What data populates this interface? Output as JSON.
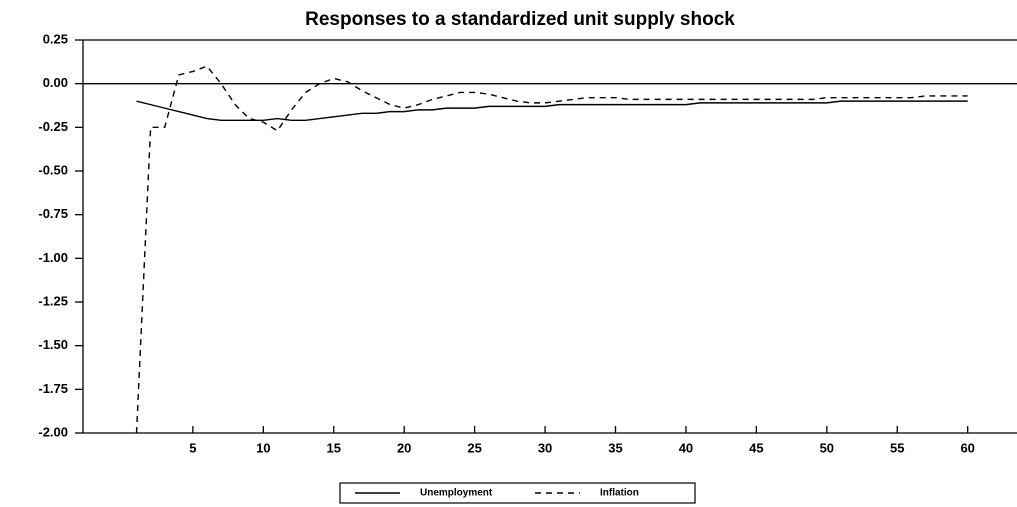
{
  "chart_data": {
    "type": "line",
    "title": "Responses to a standardized unit supply shock",
    "x": [
      1,
      2,
      3,
      4,
      5,
      6,
      7,
      8,
      9,
      10,
      11,
      12,
      13,
      14,
      15,
      16,
      17,
      18,
      19,
      20,
      21,
      22,
      23,
      24,
      25,
      26,
      27,
      28,
      29,
      30,
      31,
      32,
      33,
      34,
      35,
      36,
      37,
      38,
      39,
      40,
      41,
      42,
      43,
      44,
      45,
      46,
      47,
      48,
      49,
      50,
      51,
      52,
      53,
      54,
      55,
      56,
      57,
      58,
      59,
      60
    ],
    "series": [
      {
        "name": "Unemployment",
        "color": "#000000",
        "dash": false,
        "values": [
          -0.1,
          -0.12,
          -0.14,
          -0.16,
          -0.18,
          -0.2,
          -0.21,
          -0.21,
          -0.21,
          -0.21,
          -0.2,
          -0.21,
          -0.21,
          -0.2,
          -0.19,
          -0.18,
          -0.17,
          -0.17,
          -0.16,
          -0.16,
          -0.15,
          -0.15,
          -0.14,
          -0.14,
          -0.14,
          -0.13,
          -0.13,
          -0.13,
          -0.13,
          -0.13,
          -0.12,
          -0.12,
          -0.12,
          -0.12,
          -0.12,
          -0.12,
          -0.12,
          -0.12,
          -0.12,
          -0.12,
          -0.11,
          -0.11,
          -0.11,
          -0.11,
          -0.11,
          -0.11,
          -0.11,
          -0.11,
          -0.11,
          -0.11,
          -0.1,
          -0.1,
          -0.1,
          -0.1,
          -0.1,
          -0.1,
          -0.1,
          -0.1,
          -0.1,
          -0.1
        ]
      },
      {
        "name": "Inflation",
        "color": "#000000",
        "dash": true,
        "values": [
          -2.0,
          -0.25,
          -0.25,
          0.05,
          0.07,
          0.1,
          0.0,
          -0.12,
          -0.2,
          -0.22,
          -0.27,
          -0.15,
          -0.05,
          0.0,
          0.03,
          0.01,
          -0.04,
          -0.08,
          -0.12,
          -0.14,
          -0.12,
          -0.09,
          -0.07,
          -0.05,
          -0.05,
          -0.06,
          -0.08,
          -0.1,
          -0.11,
          -0.11,
          -0.1,
          -0.09,
          -0.08,
          -0.08,
          -0.08,
          -0.09,
          -0.09,
          -0.09,
          -0.09,
          -0.09,
          -0.09,
          -0.09,
          -0.09,
          -0.09,
          -0.09,
          -0.09,
          -0.09,
          -0.09,
          -0.09,
          -0.08,
          -0.08,
          -0.08,
          -0.08,
          -0.08,
          -0.08,
          -0.08,
          -0.07,
          -0.07,
          -0.07,
          -0.07
        ]
      }
    ],
    "xlim": [
      -2.8,
      63.5
    ],
    "xticks": [
      5,
      10,
      15,
      20,
      25,
      30,
      35,
      40,
      45,
      50,
      55,
      60
    ],
    "ylim": [
      -2.0,
      0.25
    ],
    "yticks": [
      0.25,
      {
        "value": 0,
        "label": "0.00"
      },
      -0.25,
      {
        "value": -0.5,
        "label": "-0.50"
      },
      -0.75,
      {
        "value": -1,
        "label": "-1.00"
      },
      -1.25,
      {
        "value": -1.5,
        "label": "-1.50"
      },
      -1.75,
      {
        "value": -2,
        "label": "-2.00"
      }
    ],
    "legend": "bottom"
  }
}
